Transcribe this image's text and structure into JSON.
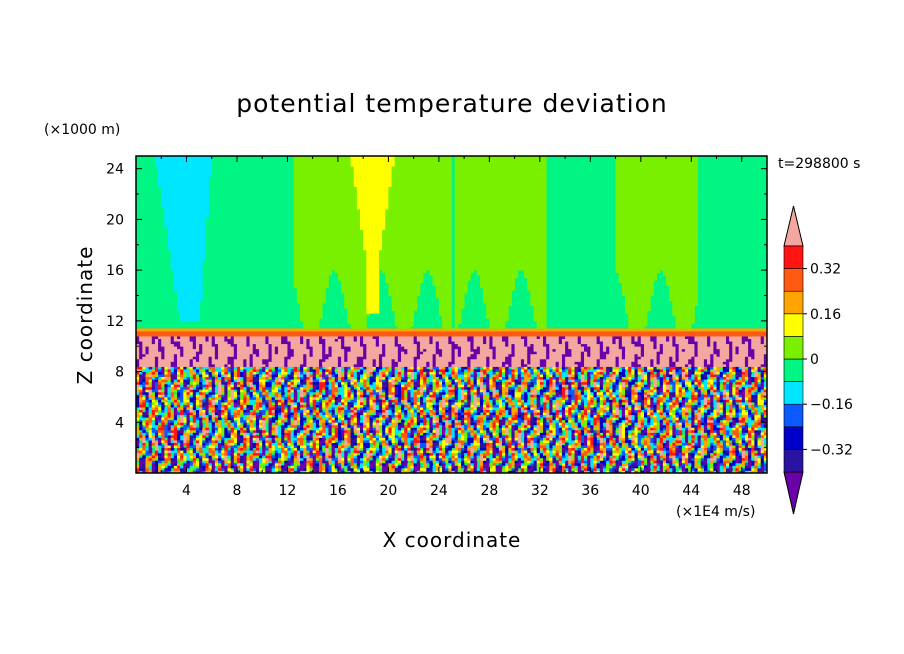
{
  "chart_data": {
    "type": "heatmap",
    "title": "potential temperature deviation",
    "xlabel": "X coordinate",
    "ylabel": "Z coordinate",
    "x_unit": "(×1E4 m/s)",
    "y_unit": "(×1000 m)",
    "time_label": "t=298800 s",
    "xlim": [
      0,
      50
    ],
    "ylim": [
      0,
      25
    ],
    "x_ticks": [
      4,
      8,
      12,
      16,
      20,
      24,
      28,
      32,
      36,
      40,
      44,
      48
    ],
    "y_ticks": [
      4,
      8,
      12,
      16,
      20,
      24
    ],
    "x_tick_labels": [
      "4",
      "8",
      "12",
      "16",
      "20",
      "24",
      "28",
      "32",
      "36",
      "40",
      "44",
      "48"
    ],
    "y_tick_labels": [
      "4",
      "8",
      "12",
      "16",
      "20",
      "24"
    ],
    "colorbar": {
      "levels": [
        -0.4,
        -0.32,
        -0.24,
        -0.16,
        -0.08,
        0,
        0.08,
        0.16,
        0.24,
        0.32,
        0.4
      ],
      "labeled_levels": [
        0.32,
        0.16,
        0,
        -0.16,
        -0.32
      ],
      "labels": [
        "0.32",
        "0.16",
        "0",
        "−0.16",
        "−0.32"
      ],
      "colors": [
        "#6a00a8",
        "#2814a0",
        "#0000c8",
        "#0a5aff",
        "#00e6ff",
        "#00f582",
        "#78f000",
        "#ffff00",
        "#ffa500",
        "#ff5a14",
        "#ff1414",
        "#f4a7a0"
      ],
      "extend": "both"
    },
    "field_regions": [
      {
        "zone": "stratosphere-background",
        "z_range": [
          11.5,
          25
        ],
        "value": -0.04
      },
      {
        "zone": "stratosphere-warm-bands",
        "x_ranges": [
          [
            12.5,
            25
          ],
          [
            25.3,
            32.5
          ],
          [
            38,
            44.5
          ]
        ],
        "value": 0.04
      },
      {
        "zone": "stratosphere-warm-core",
        "x_range": [
          17,
          20.5
        ],
        "z_range": [
          17,
          25
        ],
        "value": 0.12
      },
      {
        "zone": "stratosphere-cold-core",
        "x_range": [
          1.5,
          6
        ],
        "z_range": [
          19,
          25
        ],
        "value": -0.12
      },
      {
        "zone": "tropopause-band",
        "z_range": [
          10.8,
          11.4
        ],
        "value": 0.2
      },
      {
        "zone": "upper-troposphere",
        "z_range": [
          8.5,
          10.8
        ],
        "value": 0.45
      },
      {
        "zone": "lower-troposphere-convection",
        "z_range": [
          0,
          8.5
        ],
        "value_range": [
          -0.45,
          0.45
        ]
      }
    ]
  }
}
